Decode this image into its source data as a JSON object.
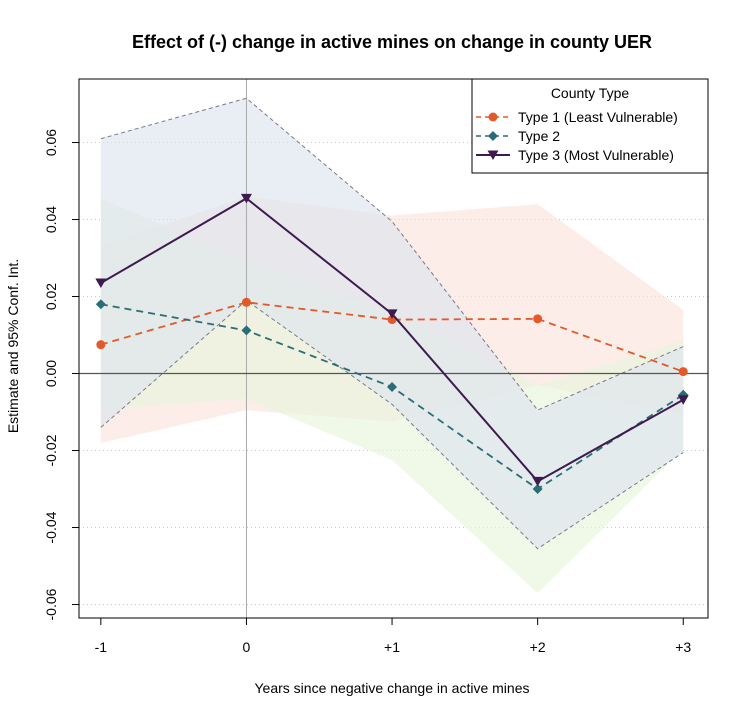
{
  "chart_data": {
    "type": "line",
    "title": "Effect of (-) change in active mines on change in county UER",
    "xlabel": "Years since negative change in active mines",
    "ylabel": "Estimate and 95% Conf. Int.",
    "categories": [
      "-1",
      "0",
      "+1",
      "+2",
      "+3"
    ],
    "x": [
      -1,
      0,
      1,
      2,
      3
    ],
    "xlim": [
      -1.15,
      3.17
    ],
    "ylim": [
      -0.0635,
      0.0765
    ],
    "yticks": [
      -0.06,
      -0.04,
      -0.02,
      0.0,
      0.02,
      0.04,
      0.06
    ],
    "ytick_labels": [
      "-0.06",
      "-0.04",
      "-0.02",
      "0.00",
      "0.02",
      "0.04",
      "0.06"
    ],
    "grid": "horizontal dotted",
    "reference_lines": {
      "y": 0,
      "x": 0
    },
    "legend": {
      "title": "County Type",
      "position": "top-right",
      "entries": [
        "Type 1 (Least Vulnerable)",
        "Type 2",
        "Type 3 (Most Vulnerable)"
      ]
    },
    "series": [
      {
        "name": "Type 1 (Least Vulnerable)",
        "values": [
          0.0075,
          0.0185,
          0.014,
          0.0142,
          0.0005
        ],
        "ci_low": [
          -0.018,
          -0.0095,
          -0.0125,
          -0.003,
          -0.0105
        ],
        "ci_high": [
          0.033,
          0.046,
          0.041,
          0.044,
          0.0165
        ],
        "color": "#e25a2b",
        "band_color": "#fbe4dc",
        "line_style": "dashed",
        "marker": "circle",
        "band_edges_dashed": false
      },
      {
        "name": "Type 2",
        "values": [
          0.018,
          0.0112,
          -0.0035,
          -0.03,
          -0.0055
        ],
        "ci_low": [
          -0.0095,
          -0.0065,
          -0.0225,
          -0.057,
          -0.0195
        ],
        "ci_high": [
          0.0455,
          0.029,
          0.016,
          -0.003,
          0.0085
        ],
        "color": "#2a6d77",
        "band_color": "#e8f5dc",
        "line_style": "dashed",
        "marker": "diamond",
        "band_edges_dashed": false
      },
      {
        "name": "Type 3 (Most Vulnerable)",
        "values": [
          0.0235,
          0.0455,
          0.0155,
          -0.028,
          -0.0068
        ],
        "ci_low": [
          -0.014,
          0.019,
          -0.008,
          -0.0455,
          -0.0205
        ],
        "ci_high": [
          0.061,
          0.0715,
          0.0395,
          -0.0095,
          0.007
        ],
        "color": "#3d1a4f",
        "band_color": "#dde3ee",
        "line_style": "solid",
        "marker": "triangle-down",
        "band_edges_dashed": true
      }
    ]
  }
}
